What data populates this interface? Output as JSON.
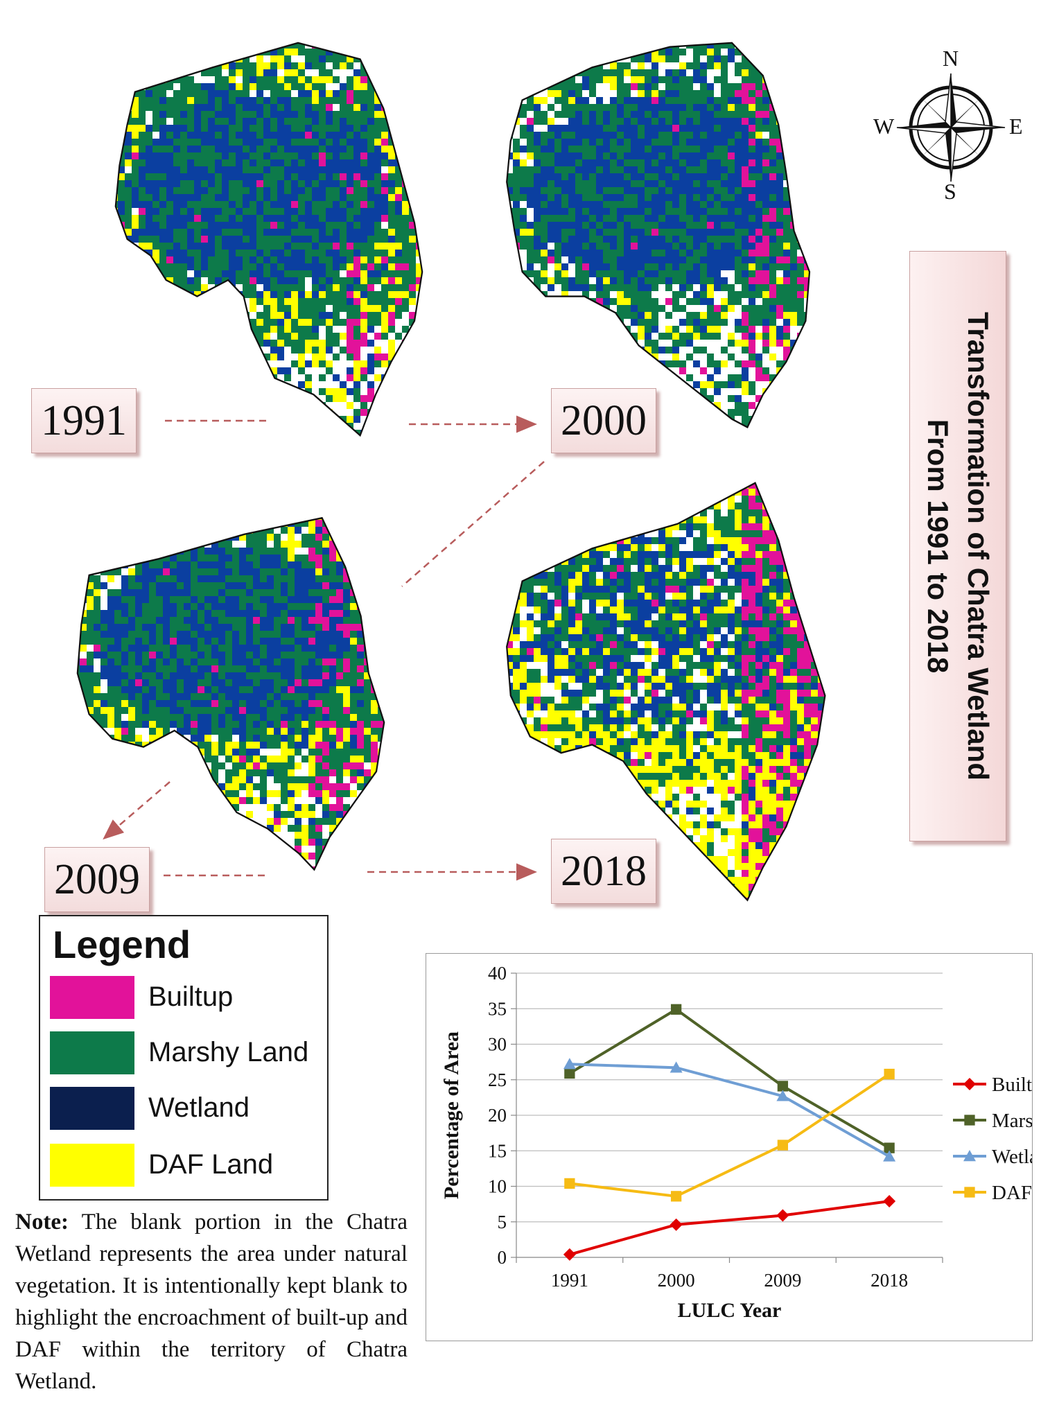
{
  "title": {
    "line1": "Transformation of Chatra Wetland",
    "line2": "From 1991 to 2018"
  },
  "maps": [
    {
      "year": "1991"
    },
    {
      "year": "2000"
    },
    {
      "year": "2009"
    },
    {
      "year": "2018"
    }
  ],
  "compass": {
    "n": "N",
    "e": "E",
    "s": "S",
    "w": "W"
  },
  "legend": {
    "title": "Legend",
    "items": [
      {
        "label": "Builtup",
        "color": "#e2129a"
      },
      {
        "label": "Marshy Land",
        "color": "#0d7a4a"
      },
      {
        "label": "Wetland",
        "color": "#0b1f4e"
      },
      {
        "label": "DAF Land",
        "color": "#ffff00"
      }
    ]
  },
  "note": {
    "label": "Note:",
    "text": "The blank portion in the Chatra Wetland represents the area under natural vegetation. It is intentionally kept blank to highlight the encroachment of built-up and DAF within the territory of Chatra Wetland."
  },
  "chart_data": {
    "type": "line",
    "title": "",
    "xlabel": "LULC Year",
    "ylabel": "Percentage of Area",
    "categories": [
      "1991",
      "2000",
      "2009",
      "2018"
    ],
    "ylim": [
      0,
      40
    ],
    "yticks": [
      0,
      5,
      10,
      15,
      20,
      25,
      30,
      35,
      40
    ],
    "grid": "horizontal",
    "legend_position": "right",
    "series": [
      {
        "name": "Builtup",
        "color": "#e00000",
        "marker": "diamond",
        "values": [
          0.4,
          4.6,
          5.9,
          7.9
        ]
      },
      {
        "name": "Marshy land",
        "color": "#4f6228",
        "marker": "square",
        "values": [
          25.9,
          34.9,
          24.1,
          15.4
        ]
      },
      {
        "name": "Wetland",
        "color": "#6f9ed4",
        "marker": "triangle",
        "values": [
          27.2,
          26.7,
          22.7,
          14.2
        ]
      },
      {
        "name": "DAF",
        "color": "#f6bb14",
        "marker": "square",
        "values": [
          10.4,
          8.6,
          15.8,
          25.8
        ]
      }
    ]
  }
}
